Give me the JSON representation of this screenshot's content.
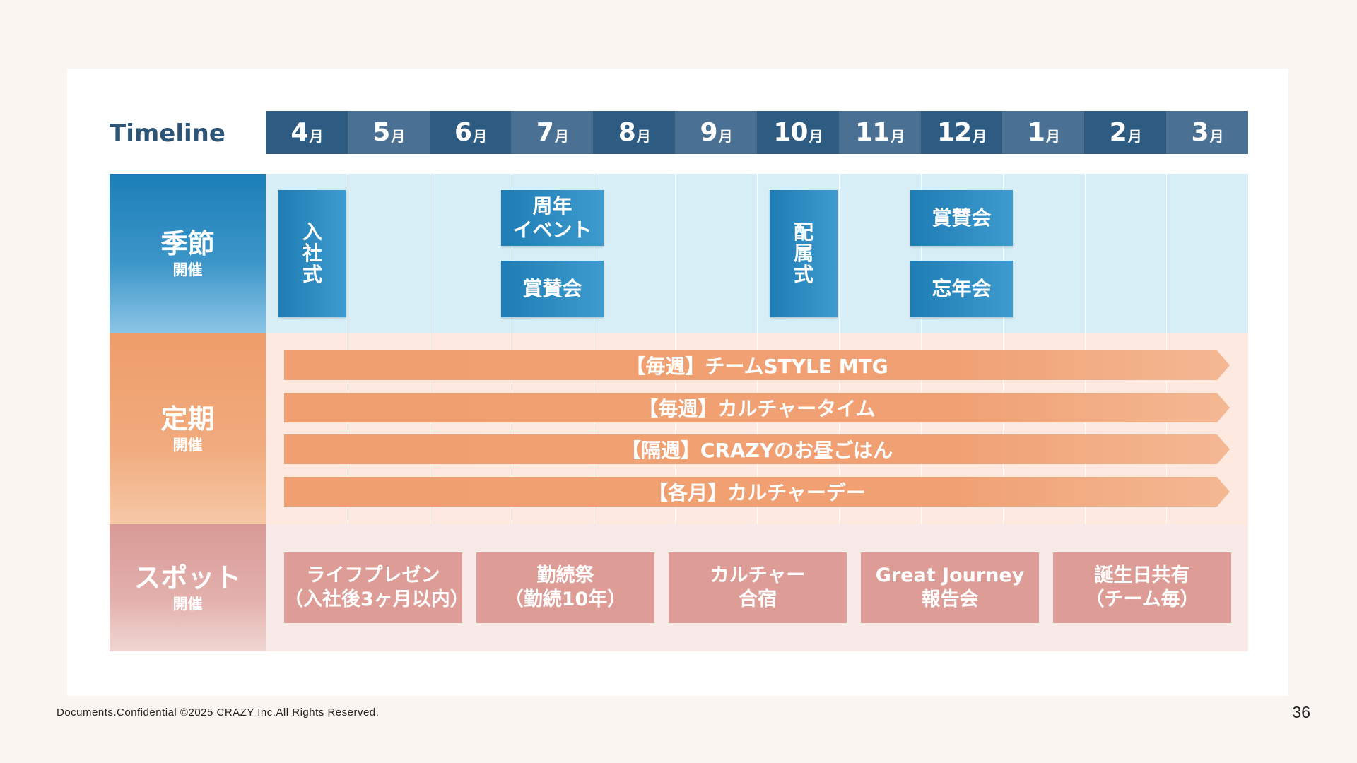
{
  "timeline_label": "Timeline",
  "month_unit": "月",
  "months": [
    "4",
    "5",
    "6",
    "7",
    "8",
    "9",
    "10",
    "11",
    "12",
    "1",
    "2",
    "3"
  ],
  "rows": {
    "season": {
      "title": "季節",
      "subtitle": "開催"
    },
    "regular": {
      "title": "定期",
      "subtitle": "開催"
    },
    "spot": {
      "title": "スポット",
      "subtitle": "開催"
    }
  },
  "season_events": [
    {
      "label": "入社式",
      "vertical": true
    },
    {
      "label": "周年\nイベント",
      "vertical": false
    },
    {
      "label": "賞賛会",
      "vertical": false
    },
    {
      "label": "配属式",
      "vertical": true
    },
    {
      "label": "賞賛会",
      "vertical": false
    },
    {
      "label": "忘年会",
      "vertical": false
    }
  ],
  "regular_events": [
    "【毎週】チームSTYLE MTG",
    "【毎週】カルチャータイム",
    "【隔週】CRAZYのお昼ごはん",
    "【各月】カルチャーデー"
  ],
  "spot_events": [
    {
      "line1": "ライフプレゼン",
      "line2": "（入社後3ヶ月以内）"
    },
    {
      "line1": "勤続祭",
      "line2": "（勤続10年）"
    },
    {
      "line1": "カルチャー",
      "line2": "合宿"
    },
    {
      "line1": "Great Journey",
      "line2": "報告会"
    },
    {
      "line1": "誕生日共有",
      "line2": "（チーム毎）"
    }
  ],
  "footer": {
    "copyright": "Documents.Confidential ©2025 CRAZY Inc.All Rights Reserved.",
    "page_number": "36"
  }
}
